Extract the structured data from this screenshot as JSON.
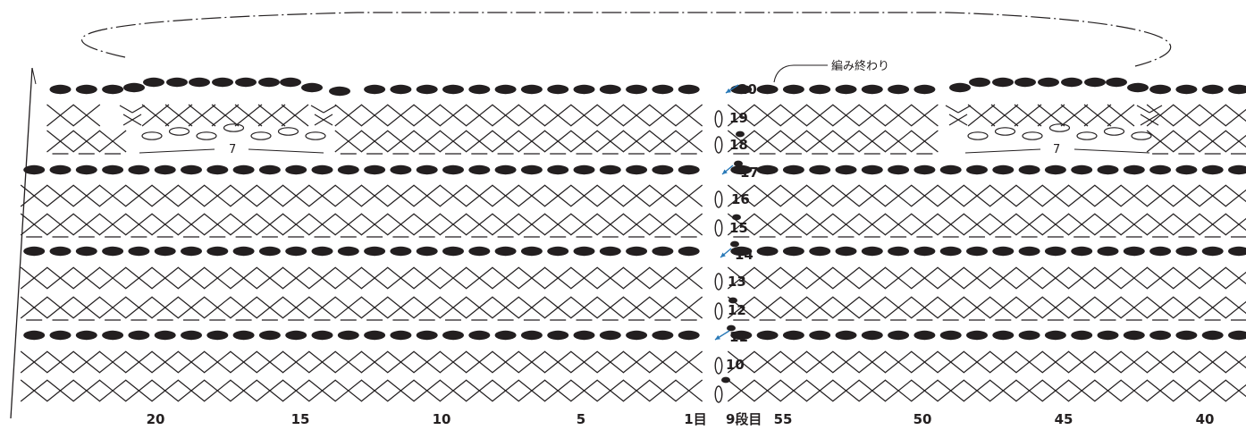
{
  "diagram": {
    "top_label": "編み終わり",
    "decrease_count_label": "7",
    "row_numbers": [
      "9段目",
      "10",
      "11",
      "12",
      "13",
      "14",
      "15",
      "16",
      "17",
      "18",
      "19",
      "20"
    ],
    "bottom_numbers": {
      "left": [
        "1目",
        "5",
        "10",
        "15",
        "20"
      ],
      "right": [
        "55",
        "50",
        "45",
        "40"
      ]
    },
    "rows": [
      {
        "row": "20",
        "stitch": "slip-stitch"
      },
      {
        "row": "19",
        "stitch": "single-crochet"
      },
      {
        "row": "18",
        "stitch": "single-crochet-back-loop"
      },
      {
        "row": "17",
        "stitch": "slip-stitch"
      },
      {
        "row": "16",
        "stitch": "single-crochet"
      },
      {
        "row": "15",
        "stitch": "single-crochet-back-loop"
      },
      {
        "row": "14",
        "stitch": "slip-stitch"
      },
      {
        "row": "13",
        "stitch": "single-crochet"
      },
      {
        "row": "12",
        "stitch": "single-crochet-back-loop"
      },
      {
        "row": "11",
        "stitch": "slip-stitch"
      },
      {
        "row": "10",
        "stitch": "single-crochet"
      },
      {
        "row": "9段目",
        "stitch": "single-crochet"
      }
    ],
    "symbol_icons": [
      "slip-stitch-icon",
      "single-crochet-icon",
      "chain-stitch-icon",
      "decrease-icon",
      "direction-arrow-icon"
    ],
    "colors": {
      "ink": "#231f20",
      "arrow": "#2a7ab8"
    }
  }
}
